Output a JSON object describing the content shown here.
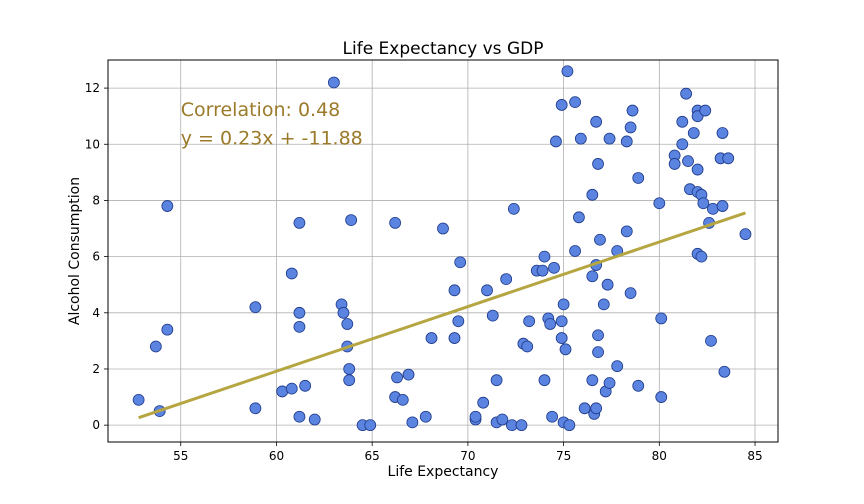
{
  "chart_data": {
    "type": "scatter",
    "title": "Life Expectancy vs GDP",
    "xlabel": "Life Expectancy",
    "ylabel": "Alcohol Consumption",
    "xlim": [
      51.2,
      86.2
    ],
    "ylim": [
      -0.6,
      13.0
    ],
    "xticks": [
      55,
      60,
      65,
      70,
      75,
      80,
      85
    ],
    "yticks": [
      0,
      2,
      4,
      6,
      8,
      10,
      12
    ],
    "grid": true,
    "colors": {
      "point_fill": "#5a84e0",
      "point_edge": "#1f3a8a",
      "line": "#b5a642",
      "annotation": "#9b7a2a",
      "grid": "#b0b0b0"
    },
    "annotations": [
      {
        "text": "Correlation:  0.48",
        "x": 55.0,
        "y": 11.0
      },
      {
        "text": "y = 0.23x + -11.88",
        "x": 55.0,
        "y": 10.0
      }
    ],
    "regression": {
      "slope": 0.23,
      "intercept": -11.88,
      "x_start": 52.8,
      "x_end": 84.5
    },
    "points": [
      {
        "x": 52.8,
        "y": 0.9
      },
      {
        "x": 53.9,
        "y": 0.5
      },
      {
        "x": 53.7,
        "y": 2.8
      },
      {
        "x": 54.3,
        "y": 3.4
      },
      {
        "x": 54.3,
        "y": 7.8
      },
      {
        "x": 58.9,
        "y": 4.2
      },
      {
        "x": 58.9,
        "y": 0.6
      },
      {
        "x": 60.3,
        "y": 1.2
      },
      {
        "x": 60.8,
        "y": 1.3
      },
      {
        "x": 60.8,
        "y": 5.4
      },
      {
        "x": 61.2,
        "y": 7.2
      },
      {
        "x": 61.2,
        "y": 4.0
      },
      {
        "x": 61.2,
        "y": 3.5
      },
      {
        "x": 61.2,
        "y": 0.3
      },
      {
        "x": 61.5,
        "y": 1.4
      },
      {
        "x": 62.0,
        "y": 0.2
      },
      {
        "x": 63.0,
        "y": 12.2
      },
      {
        "x": 63.4,
        "y": 4.3
      },
      {
        "x": 63.5,
        "y": 4.0
      },
      {
        "x": 63.7,
        "y": 3.6
      },
      {
        "x": 63.7,
        "y": 2.8
      },
      {
        "x": 63.8,
        "y": 2.0
      },
      {
        "x": 63.8,
        "y": 1.6
      },
      {
        "x": 63.9,
        "y": 7.3
      },
      {
        "x": 64.5,
        "y": 0.0
      },
      {
        "x": 64.9,
        "y": 0.0
      },
      {
        "x": 66.2,
        "y": 7.2
      },
      {
        "x": 66.3,
        "y": 1.7
      },
      {
        "x": 66.2,
        "y": 1.0
      },
      {
        "x": 66.6,
        "y": 0.9
      },
      {
        "x": 66.9,
        "y": 1.8
      },
      {
        "x": 67.1,
        "y": 0.1
      },
      {
        "x": 67.8,
        "y": 0.3
      },
      {
        "x": 68.1,
        "y": 3.1
      },
      {
        "x": 68.7,
        "y": 7.0
      },
      {
        "x": 69.3,
        "y": 4.8
      },
      {
        "x": 69.3,
        "y": 3.1
      },
      {
        "x": 69.6,
        "y": 5.8
      },
      {
        "x": 69.5,
        "y": 3.7
      },
      {
        "x": 70.4,
        "y": 0.2
      },
      {
        "x": 70.4,
        "y": 0.3
      },
      {
        "x": 70.8,
        "y": 0.8
      },
      {
        "x": 71.0,
        "y": 4.8
      },
      {
        "x": 71.3,
        "y": 3.9
      },
      {
        "x": 71.5,
        "y": 1.6
      },
      {
        "x": 71.5,
        "y": 0.1
      },
      {
        "x": 71.8,
        "y": 0.2
      },
      {
        "x": 72.0,
        "y": 5.2
      },
      {
        "x": 72.4,
        "y": 7.7
      },
      {
        "x": 72.3,
        "y": 0.0
      },
      {
        "x": 72.8,
        "y": 0.0
      },
      {
        "x": 72.9,
        "y": 2.9
      },
      {
        "x": 73.1,
        "y": 2.8
      },
      {
        "x": 73.2,
        "y": 3.7
      },
      {
        "x": 73.6,
        "y": 5.5
      },
      {
        "x": 73.9,
        "y": 5.5
      },
      {
        "x": 74.0,
        "y": 6.0
      },
      {
        "x": 74.0,
        "y": 1.6
      },
      {
        "x": 74.2,
        "y": 3.8
      },
      {
        "x": 74.3,
        "y": 3.6
      },
      {
        "x": 74.4,
        "y": 0.3
      },
      {
        "x": 74.5,
        "y": 5.6
      },
      {
        "x": 74.6,
        "y": 10.1
      },
      {
        "x": 74.9,
        "y": 11.4
      },
      {
        "x": 74.9,
        "y": 3.7
      },
      {
        "x": 74.9,
        "y": 3.1
      },
      {
        "x": 75.0,
        "y": 4.3
      },
      {
        "x": 75.0,
        "y": 0.1
      },
      {
        "x": 75.1,
        "y": 2.7
      },
      {
        "x": 75.2,
        "y": 12.6
      },
      {
        "x": 75.3,
        "y": 0.0
      },
      {
        "x": 75.6,
        "y": 11.5
      },
      {
        "x": 75.6,
        "y": 6.2
      },
      {
        "x": 75.8,
        "y": 7.4
      },
      {
        "x": 75.9,
        "y": 10.2
      },
      {
        "x": 76.1,
        "y": 0.6
      },
      {
        "x": 76.5,
        "y": 8.2
      },
      {
        "x": 76.5,
        "y": 5.3
      },
      {
        "x": 76.5,
        "y": 1.6
      },
      {
        "x": 76.6,
        "y": 0.4
      },
      {
        "x": 76.7,
        "y": 10.8
      },
      {
        "x": 76.7,
        "y": 5.7
      },
      {
        "x": 76.7,
        "y": 0.6
      },
      {
        "x": 76.8,
        "y": 9.3
      },
      {
        "x": 76.8,
        "y": 3.2
      },
      {
        "x": 76.8,
        "y": 2.6
      },
      {
        "x": 76.9,
        "y": 6.6
      },
      {
        "x": 77.1,
        "y": 4.3
      },
      {
        "x": 77.2,
        "y": 1.2
      },
      {
        "x": 77.3,
        "y": 5.0
      },
      {
        "x": 77.4,
        "y": 10.2
      },
      {
        "x": 77.4,
        "y": 1.5
      },
      {
        "x": 77.8,
        "y": 6.2
      },
      {
        "x": 77.8,
        "y": 2.1
      },
      {
        "x": 78.3,
        "y": 10.1
      },
      {
        "x": 78.3,
        "y": 6.9
      },
      {
        "x": 78.5,
        "y": 10.6
      },
      {
        "x": 78.5,
        "y": 4.7
      },
      {
        "x": 78.6,
        "y": 11.2
      },
      {
        "x": 78.9,
        "y": 8.8
      },
      {
        "x": 78.9,
        "y": 1.4
      },
      {
        "x": 80.0,
        "y": 7.9
      },
      {
        "x": 80.1,
        "y": 3.8
      },
      {
        "x": 80.1,
        "y": 1.0
      },
      {
        "x": 80.8,
        "y": 9.6
      },
      {
        "x": 80.8,
        "y": 9.3
      },
      {
        "x": 81.2,
        "y": 10.8
      },
      {
        "x": 81.2,
        "y": 10.0
      },
      {
        "x": 81.4,
        "y": 11.8
      },
      {
        "x": 81.5,
        "y": 9.4
      },
      {
        "x": 81.6,
        "y": 8.4
      },
      {
        "x": 81.8,
        "y": 10.4
      },
      {
        "x": 82.0,
        "y": 11.2
      },
      {
        "x": 82.0,
        "y": 11.0
      },
      {
        "x": 82.0,
        "y": 9.1
      },
      {
        "x": 82.0,
        "y": 8.3
      },
      {
        "x": 82.0,
        "y": 6.1
      },
      {
        "x": 82.2,
        "y": 8.2
      },
      {
        "x": 82.2,
        "y": 6.0
      },
      {
        "x": 82.3,
        "y": 7.9
      },
      {
        "x": 82.4,
        "y": 11.2
      },
      {
        "x": 82.6,
        "y": 7.2
      },
      {
        "x": 82.7,
        "y": 3.0
      },
      {
        "x": 82.8,
        "y": 7.7
      },
      {
        "x": 83.2,
        "y": 9.5
      },
      {
        "x": 83.3,
        "y": 10.4
      },
      {
        "x": 83.3,
        "y": 7.8
      },
      {
        "x": 83.4,
        "y": 1.9
      },
      {
        "x": 83.6,
        "y": 9.5
      },
      {
        "x": 84.5,
        "y": 6.8
      }
    ]
  }
}
